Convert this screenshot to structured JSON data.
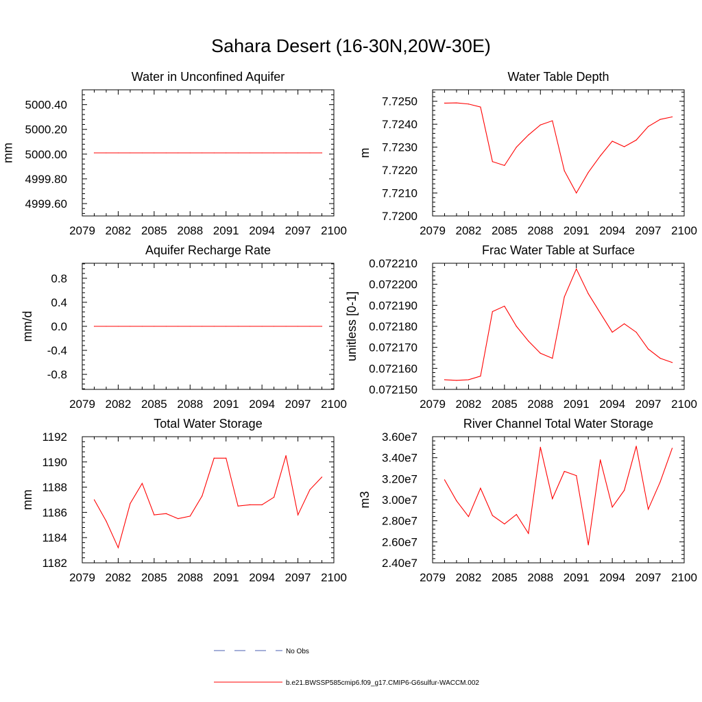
{
  "title": "Sahara Desert (16-30N,20W-30E)",
  "colors": {
    "series": "#ff0000",
    "obs": "#4a5fb0",
    "axis": "#000000"
  },
  "legend": [
    {
      "label": "No Obs",
      "style": "dashed",
      "color": "#4a5fb0"
    },
    {
      "label": "b.e21.BWSSP585cmip6.f09_g17.CMIP6-G6sulfur-WACCM.002",
      "style": "solid",
      "color": "#ff0000"
    }
  ],
  "chart_data": [
    {
      "type": "line",
      "title": "Water in Unconfined Aquifer",
      "ylabel": "mm",
      "xlim": [
        2079,
        2100
      ],
      "ylim": [
        4999.5,
        5000.52
      ],
      "xticks": [
        "2079",
        "2082",
        "2085",
        "2088",
        "2091",
        "2094",
        "2097",
        "2100"
      ],
      "yticks": [
        {
          "value": 4999.6,
          "label": "4999.60"
        },
        {
          "value": 4999.8,
          "label": "4999.80"
        },
        {
          "value": 5000.0,
          "label": "5000.00"
        },
        {
          "value": 5000.2,
          "label": "5000.20"
        },
        {
          "value": 5000.4,
          "label": "5000.40"
        }
      ],
      "x": [
        2080,
        2081,
        2082,
        2083,
        2084,
        2085,
        2086,
        2087,
        2088,
        2089,
        2090,
        2091,
        2092,
        2093,
        2094,
        2095,
        2096,
        2097,
        2098,
        2099
      ],
      "series": [
        {
          "values": [
            5000.01,
            5000.01,
            5000.01,
            5000.01,
            5000.01,
            5000.01,
            5000.01,
            5000.01,
            5000.01,
            5000.01,
            5000.01,
            5000.01,
            5000.01,
            5000.01,
            5000.01,
            5000.01,
            5000.01,
            5000.01,
            5000.01,
            5000.01
          ]
        }
      ]
    },
    {
      "type": "line",
      "title": "Water Table Depth",
      "ylabel": "m",
      "xlim": [
        2079,
        2100
      ],
      "ylim": [
        7.72,
        7.7255
      ],
      "xticks": [
        "2079",
        "2082",
        "2085",
        "2088",
        "2091",
        "2094",
        "2097",
        "2100"
      ],
      "yticks": [
        {
          "value": 7.72,
          "label": "7.7200"
        },
        {
          "value": 7.721,
          "label": "7.7210"
        },
        {
          "value": 7.722,
          "label": "7.7220"
        },
        {
          "value": 7.723,
          "label": "7.7230"
        },
        {
          "value": 7.724,
          "label": "7.7240"
        },
        {
          "value": 7.725,
          "label": "7.7250"
        }
      ],
      "x": [
        2080,
        2081,
        2082,
        2083,
        2084,
        2085,
        2086,
        2087,
        2088,
        2089,
        2090,
        2091,
        2092,
        2093,
        2094,
        2095,
        2096,
        2097,
        2098,
        2099
      ],
      "series": [
        {
          "values": [
            7.72492,
            7.72493,
            7.72488,
            7.72475,
            7.72237,
            7.7222,
            7.723,
            7.72353,
            7.72397,
            7.72415,
            7.72197,
            7.721,
            7.7219,
            7.72262,
            7.72326,
            7.72302,
            7.72331,
            7.7239,
            7.72421,
            7.72432
          ]
        }
      ]
    },
    {
      "type": "line",
      "title": "Aquifer Recharge Rate",
      "ylabel": "mm/d",
      "xlim": [
        2079,
        2100
      ],
      "ylim": [
        -1.05,
        1.05
      ],
      "xticks": [
        "2079",
        "2082",
        "2085",
        "2088",
        "2091",
        "2094",
        "2097",
        "2100"
      ],
      "yticks": [
        {
          "value": -0.8,
          "label": "-0.8"
        },
        {
          "value": -0.4,
          "label": "-0.4"
        },
        {
          "value": 0.0,
          "label": "0.0"
        },
        {
          "value": 0.4,
          "label": "0.4"
        },
        {
          "value": 0.8,
          "label": "0.8"
        }
      ],
      "x": [
        2080,
        2081,
        2082,
        2083,
        2084,
        2085,
        2086,
        2087,
        2088,
        2089,
        2090,
        2091,
        2092,
        2093,
        2094,
        2095,
        2096,
        2097,
        2098,
        2099
      ],
      "series": [
        {
          "values": [
            0,
            0,
            0,
            0,
            0,
            0,
            0,
            0,
            0,
            0,
            0,
            0,
            0,
            0,
            0,
            0,
            0,
            0,
            0,
            0
          ]
        }
      ]
    },
    {
      "type": "line",
      "title": "Frac Water Table at Surface",
      "ylabel": "unitless [0-1]",
      "xlim": [
        2079,
        2100
      ],
      "ylim": [
        0.07215,
        0.07221
      ],
      "xticks": [
        "2079",
        "2082",
        "2085",
        "2088",
        "2091",
        "2094",
        "2097",
        "2100"
      ],
      "yticks": [
        {
          "value": 0.07215,
          "label": "0.072150"
        },
        {
          "value": 0.07216,
          "label": "0.072160"
        },
        {
          "value": 0.07217,
          "label": "0.072170"
        },
        {
          "value": 0.07218,
          "label": "0.072180"
        },
        {
          "value": 0.07219,
          "label": "0.072190"
        },
        {
          "value": 0.0722,
          "label": "0.072200"
        },
        {
          "value": 0.07221,
          "label": "0.072210"
        }
      ],
      "x": [
        2080,
        2081,
        2082,
        2083,
        2084,
        2085,
        2086,
        2087,
        2088,
        2089,
        2090,
        2091,
        2092,
        2093,
        2094,
        2095,
        2096,
        2097,
        2098,
        2099
      ],
      "series": [
        {
          "values": [
            0.0721546,
            0.0721543,
            0.0721546,
            0.0721563,
            0.072187,
            0.0721896,
            0.07218,
            0.072173,
            0.0721672,
            0.0721648,
            0.072194,
            0.0722073,
            0.0721955,
            0.0721863,
            0.0721772,
            0.0721812,
            0.0721772,
            0.0721692,
            0.0721648,
            0.0721628
          ]
        }
      ]
    },
    {
      "type": "line",
      "title": "Total Water Storage",
      "ylabel": "mm",
      "xlim": [
        2079,
        2100
      ],
      "ylim": [
        1182,
        1192
      ],
      "xticks": [
        "2079",
        "2082",
        "2085",
        "2088",
        "2091",
        "2094",
        "2097",
        "2100"
      ],
      "yticks": [
        {
          "value": 1182,
          "label": "1182"
        },
        {
          "value": 1184,
          "label": "1184"
        },
        {
          "value": 1186,
          "label": "1186"
        },
        {
          "value": 1188,
          "label": "1188"
        },
        {
          "value": 1190,
          "label": "1190"
        },
        {
          "value": 1192,
          "label": "1192"
        }
      ],
      "x": [
        2080,
        2081,
        2082,
        2083,
        2084,
        2085,
        2086,
        2087,
        2088,
        2089,
        2090,
        2091,
        2092,
        2093,
        2094,
        2095,
        2096,
        2097,
        2098,
        2099
      ],
      "series": [
        {
          "values": [
            1187.0,
            1185.3,
            1183.2,
            1186.7,
            1188.3,
            1185.8,
            1185.9,
            1185.5,
            1185.7,
            1187.3,
            1190.3,
            1190.3,
            1186.5,
            1186.6,
            1186.6,
            1187.2,
            1190.5,
            1185.8,
            1187.8,
            1188.8
          ]
        }
      ]
    },
    {
      "type": "line",
      "title": "River Channel Total Water Storage",
      "ylabel": "m3",
      "xlim": [
        2079,
        2100
      ],
      "ylim": [
        24000000,
        36000000
      ],
      "xticks": [
        "2079",
        "2082",
        "2085",
        "2088",
        "2091",
        "2094",
        "2097",
        "2100"
      ],
      "yticks": [
        {
          "value": 24000000,
          "label": "2.40e7"
        },
        {
          "value": 26000000,
          "label": "2.60e7"
        },
        {
          "value": 28000000,
          "label": "2.80e7"
        },
        {
          "value": 30000000,
          "label": "3.00e7"
        },
        {
          "value": 32000000,
          "label": "3.20e7"
        },
        {
          "value": 34000000,
          "label": "3.40e7"
        },
        {
          "value": 36000000,
          "label": "3.60e7"
        }
      ],
      "x": [
        2080,
        2081,
        2082,
        2083,
        2084,
        2085,
        2086,
        2087,
        2088,
        2089,
        2090,
        2091,
        2092,
        2093,
        2094,
        2095,
        2096,
        2097,
        2098,
        2099
      ],
      "series": [
        {
          "values": [
            31900000,
            29900000,
            28400000,
            31100000,
            28500000,
            27700000,
            28600000,
            26800000,
            35000000,
            30100000,
            32700000,
            32300000,
            25700000,
            33800000,
            29300000,
            30900000,
            35100000,
            29100000,
            31700000,
            34900000
          ]
        }
      ]
    }
  ]
}
